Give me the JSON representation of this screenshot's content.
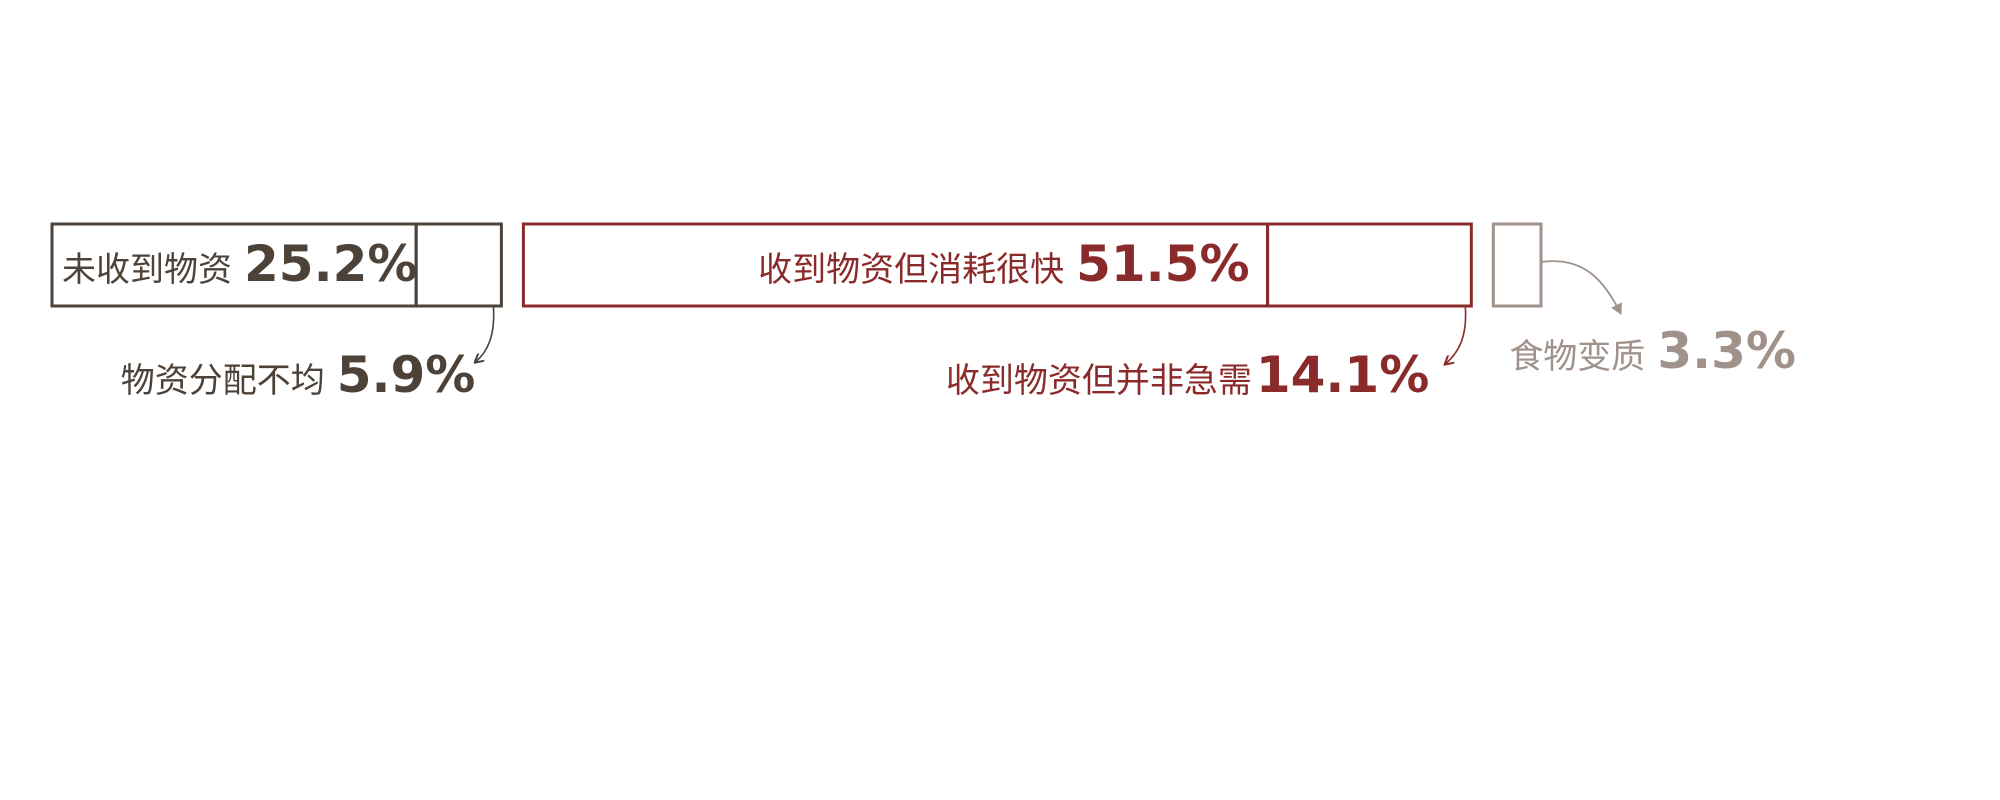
{
  "chart_data": {
    "type": "bar",
    "orientation": "horizontal-stacked-segments",
    "categories": [
      "未收到物资",
      "物资分配不均",
      "收到物资但消耗很快",
      "收到物资但并非急需",
      "食物变质"
    ],
    "values": [
      25.2,
      5.9,
      51.5,
      14.1,
      3.3
    ],
    "value_labels": [
      "25.2%",
      "5.9%",
      "51.5%",
      "14.1%",
      "3.3%"
    ],
    "segment_colors": [
      "#4d4238",
      "#4d4238",
      "#8b2a2a",
      "#8b2a2a",
      "#a0928a"
    ]
  }
}
